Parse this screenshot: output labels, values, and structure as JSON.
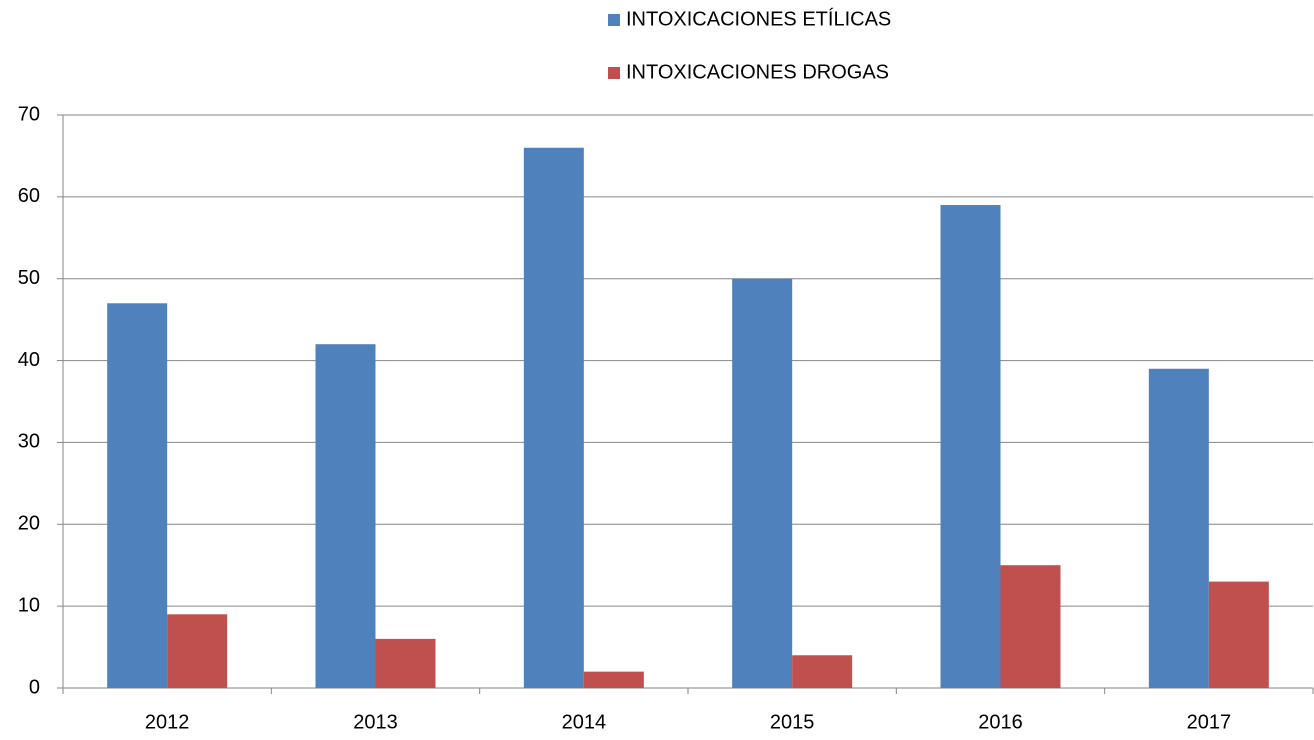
{
  "chart_data": {
    "type": "bar",
    "categories": [
      "2012",
      "2013",
      "2014",
      "2015",
      "2016",
      "2017"
    ],
    "series": [
      {
        "name": "INTOXICACIONES ETÍLICAS",
        "color": "#4f81bd",
        "values": [
          47,
          42,
          66,
          50,
          59,
          39
        ]
      },
      {
        "name": "INTOXICACIONES DROGAS",
        "color": "#c0504d",
        "values": [
          9,
          6,
          2,
          4,
          15,
          13
        ]
      }
    ],
    "ylim": [
      0,
      70
    ],
    "yticks": [
      0,
      10,
      20,
      30,
      40,
      50,
      60,
      70
    ],
    "grid": true,
    "legend": "top"
  }
}
